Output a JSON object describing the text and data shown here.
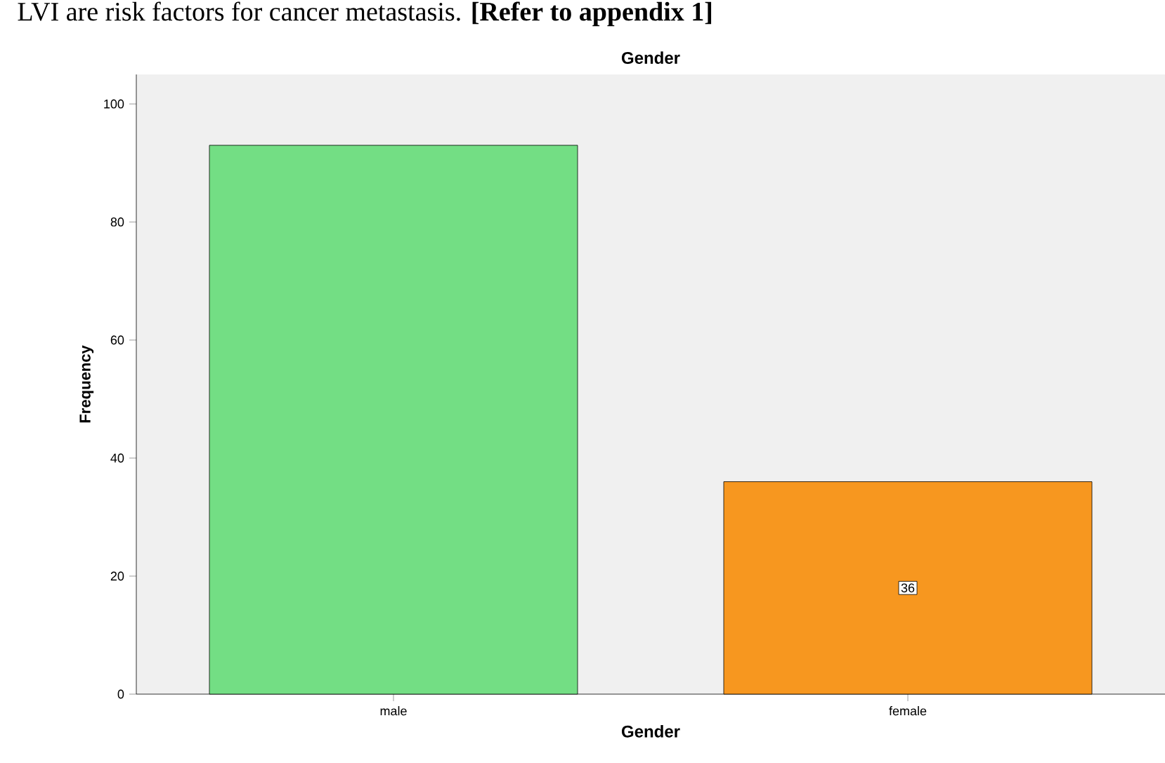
{
  "chart_data": {
    "type": "bar",
    "title": "Gender",
    "xlabel": "Gender",
    "ylabel": "Frequency",
    "categories": [
      "male",
      "female"
    ],
    "values": [
      93,
      36
    ],
    "colors": [
      "#73de84",
      "#f7971f"
    ],
    "value_labels": [
      null,
      "36"
    ],
    "ylim": [
      0,
      105
    ],
    "yticks": [
      0,
      20,
      40,
      60,
      80,
      100
    ],
    "annotations": [
      "LVI are risk factors for cancer metastasis. **[Refer to appendix 1]**"
    ]
  }
}
